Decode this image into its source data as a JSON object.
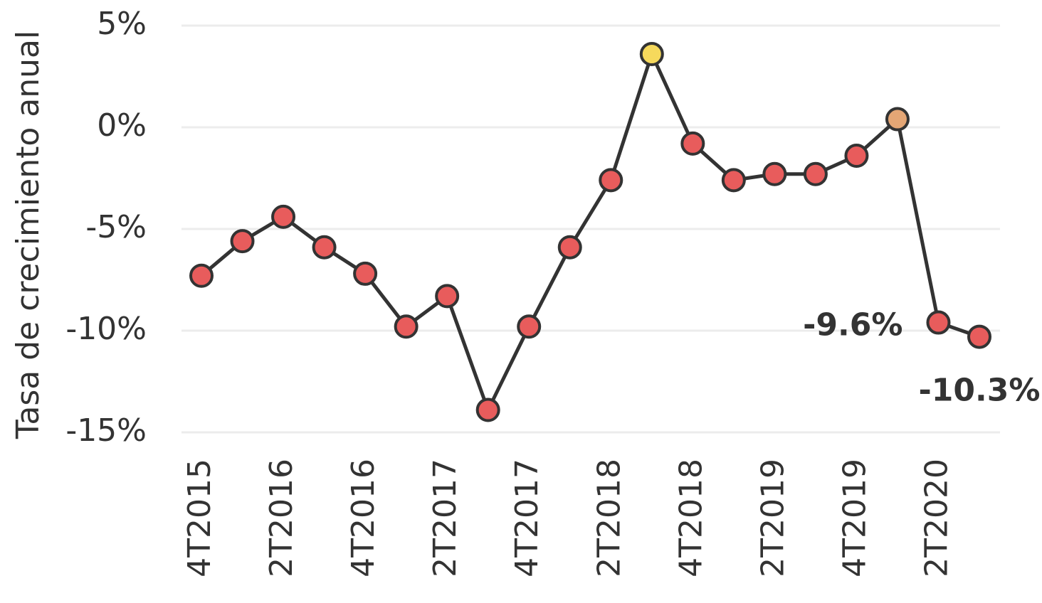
{
  "chart_data": {
    "type": "line",
    "y_label": "Tasa de crecimiento anual",
    "categories": [
      "4T2015",
      null,
      "2T2016",
      null,
      "4T2016",
      null,
      "2T2017",
      null,
      "4T2017",
      null,
      "2T2018",
      null,
      "4T2018",
      null,
      "2T2019",
      null,
      "4T2019",
      null,
      "2T2020",
      null
    ],
    "series": [
      {
        "color": "#333333",
        "values": [
          -7.3,
          -5.6,
          -4.4,
          -5.9,
          -7.2,
          -9.8,
          -8.3,
          -13.9,
          -9.8,
          -5.9,
          -2.6,
          3.6,
          -0.8,
          -2.6,
          -2.3,
          -2.3,
          -1.4,
          0.4,
          -9.6,
          -10.3
        ],
        "value_labels": [
          null,
          null,
          null,
          null,
          null,
          null,
          null,
          null,
          null,
          null,
          null,
          null,
          null,
          null,
          null,
          null,
          null,
          null,
          "-9.6%",
          "-10.3%"
        ],
        "point_colors": [
          "#e85c5c",
          "#e85c5c",
          "#e85c5c",
          "#e85c5c",
          "#e85c5c",
          "#e85c5c",
          "#e85c5c",
          "#e85c5c",
          "#e85c5c",
          "#e85c5c",
          "#e85c5c",
          "#f6d95c",
          "#e85c5c",
          "#e85c5c",
          "#e85c5c",
          "#e85c5c",
          "#e85c5c",
          "#e4a675",
          "#e85c5c",
          "#e85c5c"
        ]
      }
    ],
    "ylim": [
      -15,
      5
    ],
    "yticks": [
      {
        "value": -15,
        "label": "-15%"
      },
      {
        "value": -10,
        "label": "-10%"
      },
      {
        "value": -5,
        "label": "-5%"
      },
      {
        "value": 0,
        "label": "0%"
      },
      {
        "value": 5,
        "label": "5%"
      }
    ],
    "grid": true
  }
}
